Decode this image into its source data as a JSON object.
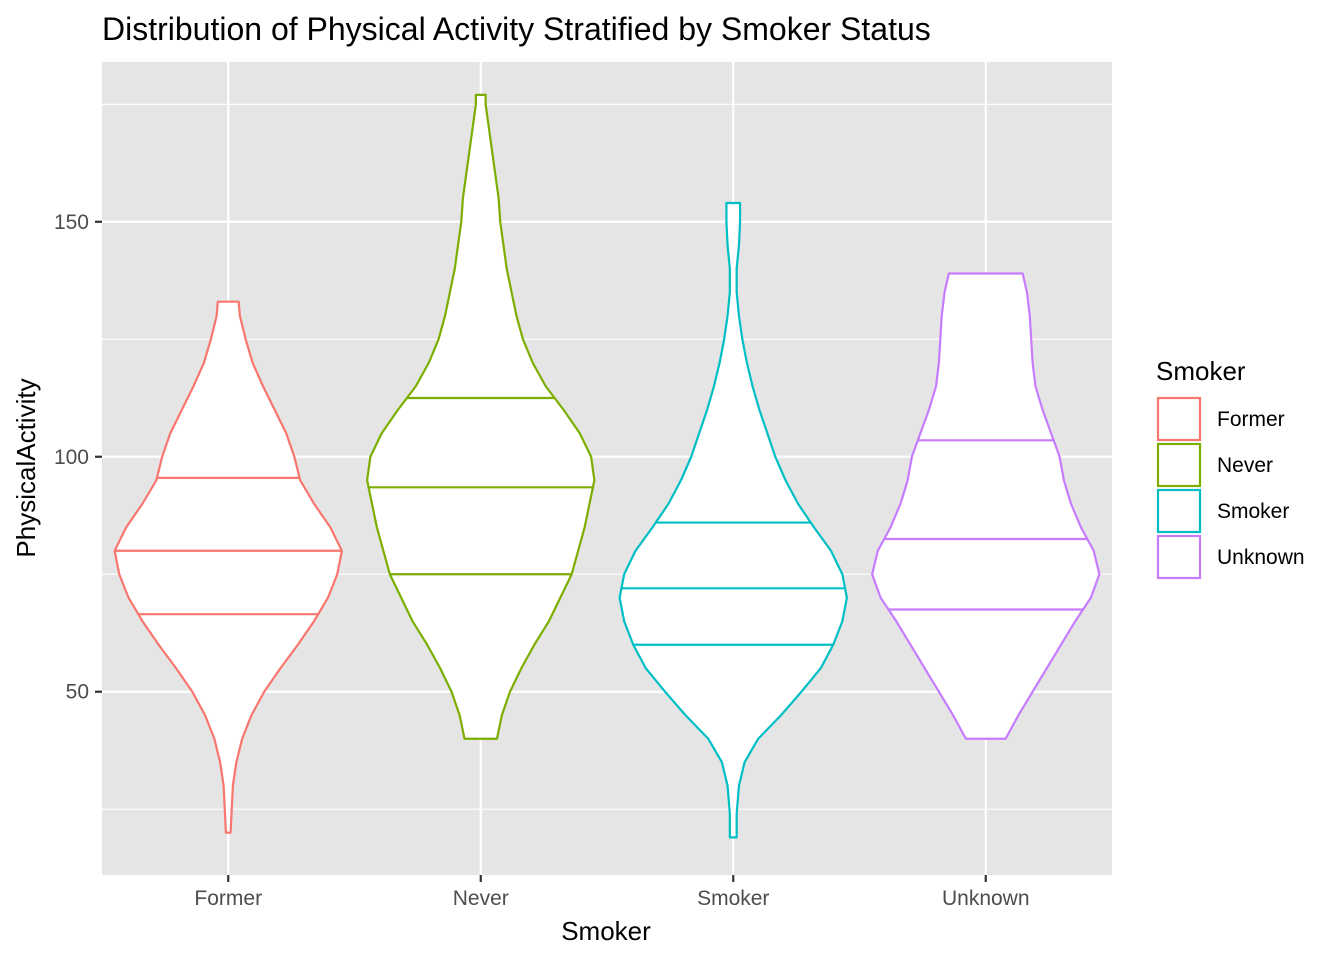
{
  "chart_data": {
    "type": "violin",
    "title": "Distribution of Physical Activity Stratified by Smoker Status",
    "xlabel": "Smoker",
    "ylabel": "PhysicalActivity",
    "categories": [
      "Former",
      "Never",
      "Smoker",
      "Unknown"
    ],
    "ylim": [
      11,
      184
    ],
    "yticks": [
      50,
      100,
      150
    ],
    "grid": true,
    "background": "#e5e5e5",
    "legend": {
      "title": "Smoker",
      "position": "right",
      "entries": [
        "Former",
        "Never",
        "Smoker",
        "Unknown"
      ]
    },
    "series": [
      {
        "name": "Former",
        "color": "#f8766d",
        "min": 20,
        "max": 133,
        "quantiles": [
          66.5,
          80,
          95.5
        ],
        "density": [
          [
            20,
            0.02
          ],
          [
            25,
            0.03
          ],
          [
            30,
            0.04
          ],
          [
            35,
            0.07
          ],
          [
            40,
            0.12
          ],
          [
            45,
            0.2
          ],
          [
            50,
            0.31
          ],
          [
            55,
            0.45
          ],
          [
            60,
            0.6
          ],
          [
            65,
            0.74
          ],
          [
            70,
            0.86
          ],
          [
            75,
            0.94
          ],
          [
            80,
            0.98
          ],
          [
            85,
            0.88
          ],
          [
            90,
            0.74
          ],
          [
            95,
            0.62
          ],
          [
            100,
            0.57
          ],
          [
            105,
            0.5
          ],
          [
            110,
            0.4
          ],
          [
            115,
            0.3
          ],
          [
            120,
            0.21
          ],
          [
            125,
            0.15
          ],
          [
            130,
            0.1
          ],
          [
            133,
            0.09
          ]
        ]
      },
      {
        "name": "Never",
        "color": "#7cae00",
        "min": 40,
        "max": 177,
        "quantiles": [
          75,
          93.5,
          112.5
        ],
        "density": [
          [
            40,
            0.1
          ],
          [
            45,
            0.13
          ],
          [
            50,
            0.18
          ],
          [
            55,
            0.25
          ],
          [
            60,
            0.33
          ],
          [
            65,
            0.42
          ],
          [
            70,
            0.49
          ],
          [
            75,
            0.56
          ],
          [
            80,
            0.6
          ],
          [
            85,
            0.64
          ],
          [
            90,
            0.67
          ],
          [
            95,
            0.7
          ],
          [
            100,
            0.68
          ],
          [
            105,
            0.61
          ],
          [
            110,
            0.51
          ],
          [
            115,
            0.4
          ],
          [
            120,
            0.32
          ],
          [
            125,
            0.26
          ],
          [
            130,
            0.22
          ],
          [
            135,
            0.19
          ],
          [
            140,
            0.16
          ],
          [
            145,
            0.14
          ],
          [
            150,
            0.12
          ],
          [
            155,
            0.11
          ],
          [
            160,
            0.09
          ],
          [
            165,
            0.07
          ],
          [
            170,
            0.05
          ],
          [
            175,
            0.03
          ],
          [
            177,
            0.03
          ]
        ]
      },
      {
        "name": "Smoker",
        "color": "#00bfc4",
        "min": 19,
        "max": 154,
        "quantiles": [
          60,
          72,
          86
        ],
        "density": [
          [
            19,
            0.03
          ],
          [
            24,
            0.03
          ],
          [
            30,
            0.05
          ],
          [
            35,
            0.1
          ],
          [
            40,
            0.22
          ],
          [
            45,
            0.42
          ],
          [
            50,
            0.6
          ],
          [
            55,
            0.77
          ],
          [
            60,
            0.88
          ],
          [
            65,
            0.96
          ],
          [
            70,
            1.0
          ],
          [
            75,
            0.96
          ],
          [
            80,
            0.86
          ],
          [
            85,
            0.71
          ],
          [
            90,
            0.57
          ],
          [
            95,
            0.46
          ],
          [
            100,
            0.37
          ],
          [
            105,
            0.3
          ],
          [
            110,
            0.23
          ],
          [
            115,
            0.17
          ],
          [
            120,
            0.12
          ],
          [
            125,
            0.08
          ],
          [
            130,
            0.05
          ],
          [
            135,
            0.03
          ],
          [
            140,
            0.03
          ],
          [
            145,
            0.05
          ],
          [
            150,
            0.06
          ],
          [
            154,
            0.06
          ]
        ]
      },
      {
        "name": "Unknown",
        "color": "#c77cff",
        "min": 40,
        "max": 139,
        "quantiles": [
          67.5,
          82.5,
          103.5
        ],
        "density": [
          [
            40,
            0.14
          ],
          [
            45,
            0.23
          ],
          [
            50,
            0.33
          ],
          [
            55,
            0.43
          ],
          [
            60,
            0.53
          ],
          [
            65,
            0.63
          ],
          [
            70,
            0.74
          ],
          [
            75,
            0.8
          ],
          [
            80,
            0.76
          ],
          [
            85,
            0.67
          ],
          [
            90,
            0.6
          ],
          [
            95,
            0.55
          ],
          [
            100,
            0.52
          ],
          [
            105,
            0.46
          ],
          [
            110,
            0.4
          ],
          [
            115,
            0.35
          ],
          [
            120,
            0.33
          ],
          [
            125,
            0.32
          ],
          [
            130,
            0.31
          ],
          [
            135,
            0.29
          ],
          [
            139,
            0.26
          ]
        ]
      }
    ]
  }
}
